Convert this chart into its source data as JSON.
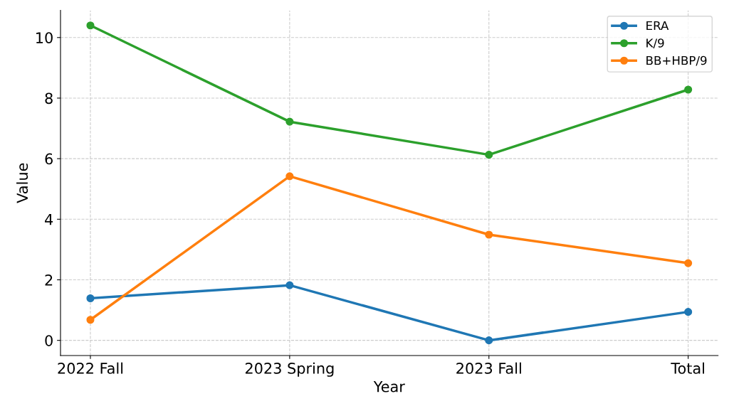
{
  "chart_data": {
    "type": "line",
    "xlabel": "Year",
    "ylabel": "Value",
    "categories": [
      "2022 Fall",
      "2023 Spring",
      "2023 Fall",
      "Total"
    ],
    "series": [
      {
        "name": "ERA",
        "color": "#1f77b4",
        "values": [
          1.39,
          1.82,
          0.0,
          0.94
        ]
      },
      {
        "name": "K/9",
        "color": "#2ca02c",
        "values": [
          10.4,
          7.22,
          6.13,
          8.28
        ]
      },
      {
        "name": "BB+HBP/9",
        "color": "#ff7f0e",
        "values": [
          0.68,
          5.42,
          3.49,
          2.55
        ]
      }
    ],
    "ylim": [
      -0.5,
      10.9
    ],
    "yticks": [
      0,
      2,
      4,
      6,
      8,
      10
    ],
    "grid": true,
    "legend": "top right",
    "marker": "circle",
    "line_style": "solid"
  }
}
